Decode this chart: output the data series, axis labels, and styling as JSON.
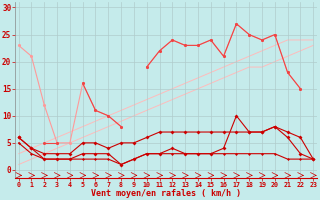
{
  "x": [
    0,
    1,
    2,
    3,
    4,
    5,
    6,
    7,
    8,
    9,
    10,
    11,
    12,
    13,
    14,
    15,
    16,
    17,
    18,
    19,
    20,
    21,
    22,
    23
  ],
  "bg_color": "#c5ebeb",
  "grid_color": "#b0cccc",
  "xlabel": "Vent moyen/en rafales ( km/h )",
  "ylim": [
    -1.5,
    31
  ],
  "xlim": [
    -0.3,
    23.3
  ],
  "yticks": [
    0,
    5,
    10,
    15,
    20,
    25,
    30
  ],
  "xticks": [
    0,
    1,
    2,
    3,
    4,
    5,
    6,
    7,
    8,
    9,
    10,
    11,
    12,
    13,
    14,
    15,
    16,
    17,
    18,
    19,
    20,
    21,
    22,
    23
  ],
  "line_pink_light1": [
    null,
    null,
    null,
    null,
    null,
    null,
    null,
    null,
    null,
    null,
    null,
    null,
    null,
    null,
    null,
    null,
    null,
    null,
    null,
    null,
    null,
    null,
    null,
    null
  ],
  "trend1": [
    3,
    4,
    5,
    6,
    7,
    8,
    9,
    10,
    11,
    12,
    13,
    14,
    15,
    16,
    17,
    18,
    19,
    20,
    21,
    22,
    23,
    24,
    24,
    24
  ],
  "trend2": [
    1,
    2,
    3,
    4,
    5,
    6,
    7,
    8,
    9,
    10,
    11,
    12,
    13,
    14,
    15,
    16,
    17,
    18,
    19,
    19,
    20,
    21,
    22,
    23
  ],
  "lineA": [
    23,
    21,
    12,
    5,
    5,
    16,
    11,
    10,
    8,
    null,
    19,
    22,
    24,
    23,
    23,
    24,
    21,
    27,
    25,
    24,
    25,
    18,
    15,
    null
  ],
  "lineB": [
    6,
    null,
    5,
    5,
    null,
    16,
    11,
    10,
    8,
    null,
    19,
    22,
    24,
    23,
    23,
    24,
    21,
    27,
    25,
    24,
    25,
    18,
    15,
    null
  ],
  "lineC": [
    6,
    4,
    3,
    3,
    3,
    5,
    5,
    4,
    5,
    5,
    6,
    7,
    7,
    7,
    7,
    7,
    7,
    7,
    7,
    7,
    8,
    7,
    6,
    2
  ],
  "lineD": [
    6,
    4,
    2,
    2,
    2,
    3,
    3,
    3,
    1,
    2,
    3,
    3,
    4,
    3,
    3,
    3,
    4,
    10,
    7,
    7,
    8,
    6,
    3,
    2
  ],
  "lineE": [
    5,
    3,
    2,
    2,
    2,
    2,
    2,
    2,
    1,
    2,
    3,
    3,
    3,
    3,
    3,
    3,
    3,
    3,
    3,
    3,
    3,
    2,
    2,
    2
  ],
  "color_dark_red": "#cc0000",
  "color_med_red": "#ee4444",
  "color_light_red": "#ff9999",
  "color_trend": "#ffbbbb"
}
